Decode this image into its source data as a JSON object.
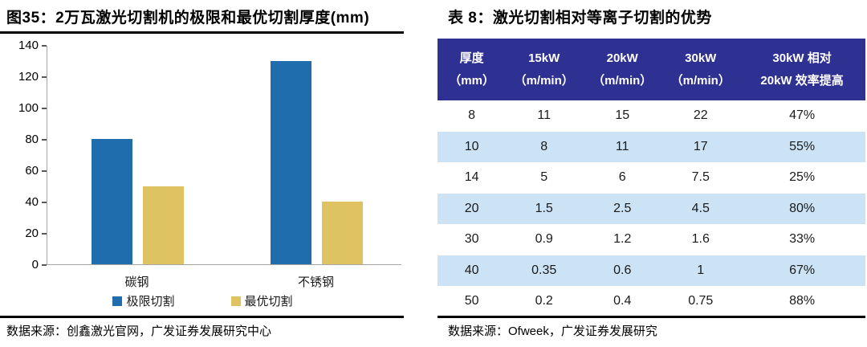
{
  "chart_data": [
    {
      "type": "bar",
      "panel": "left",
      "title": "图35：2万瓦激光切割机的极限和最优切割厚度(mm)",
      "source": "数据来源：创鑫激光官网，广发证券发展研究中心",
      "categories": [
        "碳钢",
        "不锈钢"
      ],
      "series": [
        {
          "name": "极限切割",
          "color": "#1f6dad",
          "values": [
            80,
            130
          ]
        },
        {
          "name": "最优切割",
          "color": "#dfc363",
          "values": [
            50,
            40
          ]
        }
      ],
      "ylim": [
        0,
        140
      ],
      "yticks": [
        0,
        20,
        40,
        60,
        80,
        100,
        120,
        140
      ],
      "grid": false,
      "legend_position": "bottom",
      "axis_color": "#a6a6a6"
    },
    {
      "type": "table",
      "panel": "right",
      "title": "表 8：激光切割相对等离子切割的优势",
      "source": "数据来源：Ofweek，广发证券发展研究",
      "columns": [
        {
          "line1": "厚度",
          "line2": "（mm）"
        },
        {
          "line1": "15kW",
          "line2": "（m/min）"
        },
        {
          "line1": "20kW",
          "line2": "（m/min）"
        },
        {
          "line1": "30kW",
          "line2": "（m/min）"
        },
        {
          "line1": "30kW 相对",
          "line2": "20kW 效率提高"
        }
      ],
      "rows": [
        [
          "8",
          "11",
          "15",
          "22",
          "47%"
        ],
        [
          "10",
          "8",
          "11",
          "17",
          "55%"
        ],
        [
          "14",
          "5",
          "6",
          "7.5",
          "25%"
        ],
        [
          "20",
          "1.5",
          "2.5",
          "4.5",
          "80%"
        ],
        [
          "30",
          "0.9",
          "1.2",
          "1.6",
          "33%"
        ],
        [
          "40",
          "0.35",
          "0.6",
          "1",
          "67%"
        ],
        [
          "50",
          "0.2",
          "0.4",
          "0.75",
          "88%"
        ]
      ],
      "header_bg": "#2e3192",
      "stripe_colors": [
        "#ffffff",
        "#cbe3f5"
      ]
    }
  ]
}
